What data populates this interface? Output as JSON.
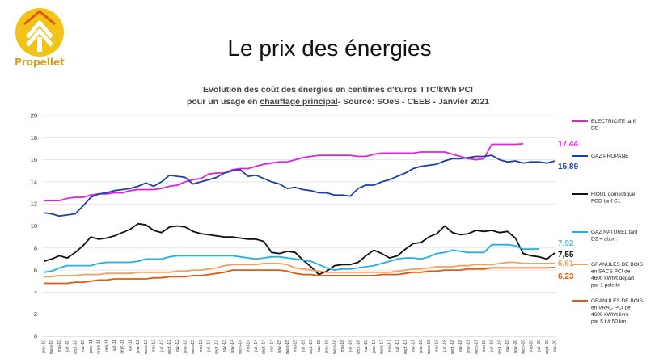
{
  "brand": {
    "name": "Propellet"
  },
  "slide": {
    "title": "Le prix des énergies"
  },
  "chart_data": {
    "type": "line",
    "title_line1": "Evolution des coût des énergies en centimes d'€uros TTC/kWh PCI",
    "title_line2_prefix": "pour un usage en ",
    "title_line2_emph": "chauffage principal",
    "title_line2_suffix": "- Source: SOeS - CEEB - Janvier 2021",
    "ylim": [
      0,
      20
    ],
    "yticks": [
      "0",
      "2",
      "4",
      "6",
      "8",
      "10",
      "12",
      "14",
      "16",
      "18",
      "20"
    ],
    "grid": true,
    "legend_position": "right",
    "x": [
      "janv.-10",
      "mars-10",
      "mai-10",
      "juil.-10",
      "sept.-10",
      "nov.-10",
      "janv.-11",
      "mars-11",
      "mai-11",
      "juil.-11",
      "sept.-11",
      "nov.-11",
      "janv.-12",
      "mars-12",
      "mai-12",
      "juil.-12",
      "sept.-12",
      "nov.-12",
      "janv.-13",
      "mars-13",
      "mai-13",
      "juil.-13",
      "sept.-13",
      "nov.-13",
      "janv.-14",
      "mars-14",
      "mai-14",
      "juil.-14",
      "sept.-14",
      "nov.-14",
      "janv.-15",
      "mars-15",
      "mai-15",
      "juil.-15",
      "sept.-15",
      "nov.-15",
      "janv.-16",
      "mars-16",
      "mai-16",
      "juil.-16",
      "sept.-16",
      "nov.-16",
      "janv.-17",
      "mars-17",
      "mai-17",
      "juil.-17",
      "sept.-17",
      "nov.-17",
      "janv.-18",
      "mars-18",
      "mai-18",
      "juil.-18",
      "sept.-18",
      "nov.-18",
      "janv.-19",
      "mars-19",
      "mai-19",
      "juil.-19",
      "sept.-19",
      "nov.-19",
      "janv.-20",
      "mars-20",
      "mai-20",
      "juil.-20",
      "sept.-20",
      "nov.-20"
    ],
    "series": [
      {
        "name": "ELECTRICITE tarif DD",
        "color": "#e020e0",
        "end_label": "17,44",
        "values": [
          12.3,
          12.3,
          12.3,
          12.5,
          12.6,
          12.6,
          12.8,
          12.9,
          12.9,
          13.0,
          13.0,
          13.2,
          13.3,
          13.3,
          13.3,
          13.4,
          13.6,
          13.7,
          14.0,
          14.2,
          14.3,
          14.7,
          14.8,
          14.8,
          15.1,
          15.2,
          15.2,
          15.4,
          15.6,
          15.7,
          15.8,
          15.8,
          16.0,
          16.2,
          16.3,
          16.4,
          16.4,
          16.4,
          16.4,
          16.4,
          16.3,
          16.3,
          16.5,
          16.6,
          16.6,
          16.6,
          16.6,
          16.6,
          16.7,
          16.7,
          16.7,
          16.7,
          16.5,
          16.3,
          16.1,
          16.0,
          16.1,
          17.4,
          17.4,
          17.4,
          17.4,
          17.44,
          null,
          null,
          null,
          null
        ]
      },
      {
        "name": "GAZ PROPANE",
        "color": "#1f3fa8",
        "end_label": "15,89",
        "values": [
          11.2,
          11.1,
          10.9,
          11.0,
          11.1,
          11.8,
          12.6,
          12.9,
          13.0,
          13.2,
          13.3,
          13.4,
          13.6,
          13.9,
          13.6,
          14.0,
          14.6,
          14.5,
          14.4,
          13.8,
          14.0,
          14.2,
          14.4,
          14.8,
          15.0,
          15.1,
          14.5,
          14.6,
          14.3,
          14.0,
          13.8,
          13.4,
          13.5,
          13.3,
          13.2,
          13.0,
          13.0,
          12.8,
          12.8,
          12.7,
          13.4,
          13.7,
          13.7,
          14.0,
          14.2,
          14.5,
          14.8,
          15.2,
          15.4,
          15.5,
          15.6,
          15.9,
          16.1,
          16.1,
          16.2,
          16.3,
          16.3,
          16.4,
          16.0,
          15.8,
          15.9,
          15.7,
          15.8,
          15.8,
          15.7,
          15.89
        ]
      },
      {
        "name": "FIOUL domestique FOD tarif C1",
        "color": "#111111",
        "end_label": "7,55",
        "values": [
          6.8,
          7.0,
          7.3,
          7.1,
          7.6,
          8.2,
          9.0,
          8.8,
          8.9,
          9.1,
          9.4,
          9.7,
          10.2,
          10.1,
          9.6,
          9.4,
          9.9,
          10.0,
          9.9,
          9.5,
          9.3,
          9.2,
          9.1,
          9.0,
          9.0,
          8.9,
          8.8,
          8.8,
          8.6,
          7.6,
          7.5,
          7.7,
          7.6,
          6.9,
          6.3,
          5.6,
          5.9,
          6.4,
          6.5,
          6.5,
          6.7,
          7.3,
          7.8,
          7.5,
          7.1,
          7.3,
          7.9,
          8.4,
          8.5,
          9.0,
          9.3,
          10.0,
          9.4,
          9.2,
          9.3,
          9.6,
          9.5,
          9.6,
          9.4,
          9.5,
          8.9,
          7.5,
          7.3,
          7.2,
          7.0,
          7.55
        ]
      },
      {
        "name": "GAZ NATUREL tarif D2 + abon.",
        "color": "#20b0e8",
        "end_label": "7,92",
        "values": [
          5.8,
          5.9,
          6.2,
          6.4,
          6.4,
          6.4,
          6.4,
          6.6,
          6.7,
          6.7,
          6.7,
          6.7,
          6.8,
          7.0,
          7.0,
          7.0,
          7.2,
          7.3,
          7.3,
          7.3,
          7.3,
          7.3,
          7.3,
          7.3,
          7.3,
          7.2,
          7.1,
          7.0,
          7.1,
          7.2,
          7.2,
          7.1,
          7.0,
          6.9,
          6.8,
          6.5,
          6.2,
          6.0,
          6.1,
          6.1,
          6.2,
          6.3,
          6.4,
          6.6,
          6.8,
          7.0,
          7.1,
          7.1,
          7.0,
          7.2,
          7.5,
          7.6,
          7.8,
          7.7,
          7.6,
          7.6,
          7.6,
          8.3,
          8.3,
          8.3,
          8.2,
          7.9,
          7.9,
          7.92,
          null,
          null
        ]
      },
      {
        "name": "GRANULES DE BOIS en SACS PCI de 4600 kWh/t départ par 1 palette",
        "color": "#f0a060",
        "end_label": "6,61",
        "values": [
          5.4,
          5.4,
          5.5,
          5.5,
          5.5,
          5.6,
          5.6,
          5.6,
          5.7,
          5.7,
          5.7,
          5.7,
          5.8,
          5.8,
          5.8,
          5.8,
          5.8,
          5.9,
          5.9,
          6.0,
          6.0,
          6.1,
          6.2,
          6.4,
          6.5,
          6.5,
          6.5,
          6.5,
          6.6,
          6.6,
          6.6,
          6.5,
          6.2,
          6.1,
          6.0,
          5.9,
          5.8,
          5.8,
          5.8,
          5.8,
          5.8,
          5.8,
          5.8,
          5.8,
          5.8,
          5.9,
          6.0,
          6.1,
          6.1,
          6.2,
          6.3,
          6.3,
          6.3,
          6.4,
          6.4,
          6.5,
          6.5,
          6.5,
          6.6,
          6.7,
          6.7,
          6.6,
          6.6,
          6.6,
          6.6,
          6.61
        ]
      },
      {
        "name": "GRANULES DE BOIS en VRAC PCI de 4600 kWh/t livré par 5 t à 50 km",
        "color": "#e05a10",
        "end_label": "6,23",
        "values": [
          4.8,
          4.8,
          4.8,
          4.8,
          4.9,
          4.9,
          5.0,
          5.1,
          5.1,
          5.2,
          5.2,
          5.2,
          5.2,
          5.2,
          5.3,
          5.3,
          5.4,
          5.4,
          5.4,
          5.5,
          5.5,
          5.6,
          5.7,
          5.8,
          6.0,
          6.0,
          6.0,
          6.0,
          6.0,
          6.0,
          6.0,
          5.9,
          5.7,
          5.6,
          5.6,
          5.5,
          5.5,
          5.5,
          5.5,
          5.5,
          5.5,
          5.5,
          5.5,
          5.6,
          5.6,
          5.6,
          5.7,
          5.8,
          5.8,
          5.9,
          5.9,
          6.0,
          6.0,
          6.0,
          6.1,
          6.1,
          6.1,
          6.2,
          6.2,
          6.2,
          6.2,
          6.2,
          6.2,
          6.2,
          6.2,
          6.23
        ]
      }
    ]
  }
}
